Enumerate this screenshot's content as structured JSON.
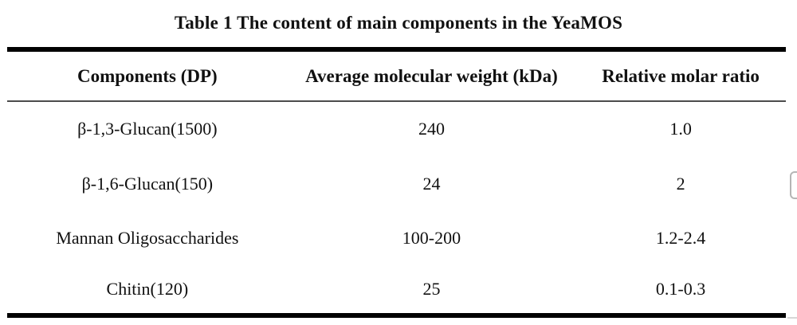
{
  "title": "Table 1 The content of main components in the YeaMOS",
  "table": {
    "columns": [
      "Components (DP)",
      "Average molecular weight (kDa)",
      "Relative molar ratio"
    ],
    "rows": [
      {
        "component": "β-1,3-Glucan(1500)",
        "mw": "240",
        "ratio": "1.0"
      },
      {
        "component": "β-1,6-Glucan(150)",
        "mw": "24",
        "ratio": "2"
      },
      {
        "component": "Mannan Oligosaccharides",
        "mw": "100-200",
        "ratio": "1.2-2.4"
      },
      {
        "component": "Chitin(120)",
        "mw": "25",
        "ratio": "0.1-0.3"
      }
    ]
  },
  "colors": {
    "text": "#111111",
    "rule_thick": "#000000",
    "rule_thin": "#4c4c4c",
    "clipped_panel_border": "#b5b5b5",
    "background": "#ffffff"
  }
}
